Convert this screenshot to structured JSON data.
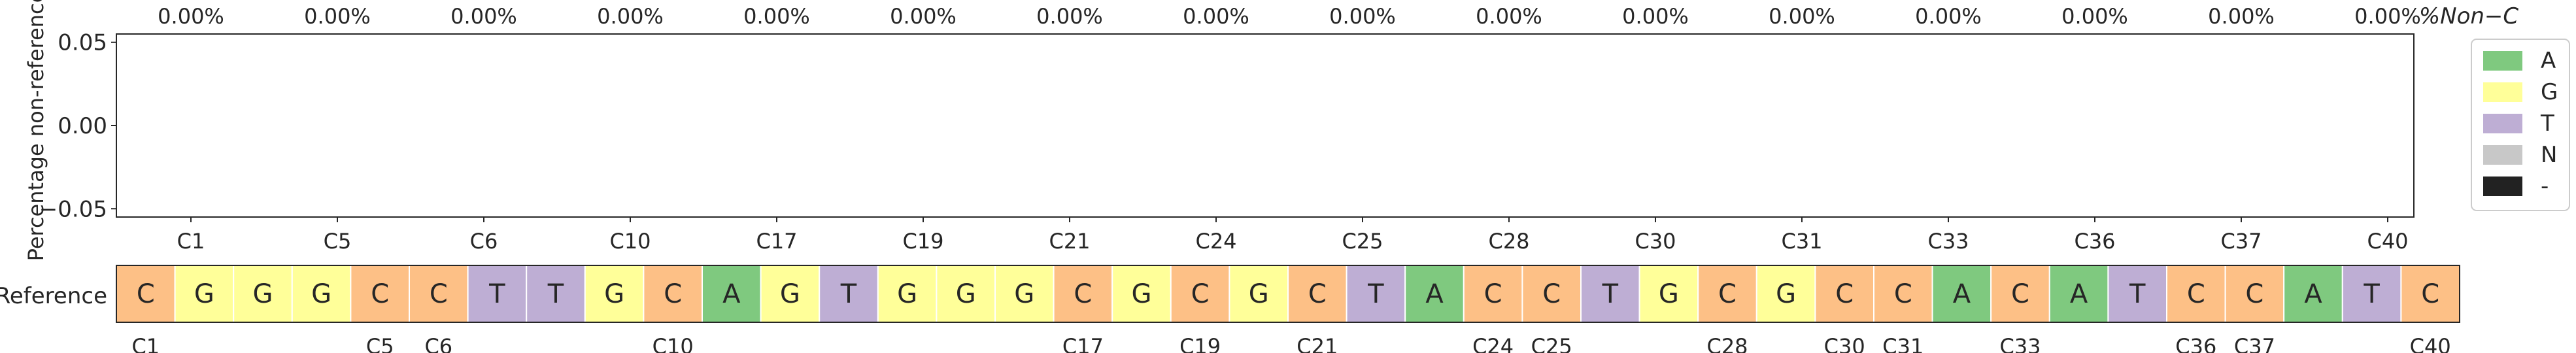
{
  "chart_data": {
    "type": "bar",
    "top_panel": {
      "ylabel": "Percentage non-reference",
      "yticks": [
        -0.05,
        0.0,
        0.05
      ],
      "ytick_labels": [
        "−0.05",
        "0.00",
        "0.05"
      ],
      "ylim": [
        -0.055,
        0.055
      ],
      "categories": [
        "C1",
        "C5",
        "C6",
        "C10",
        "C17",
        "C19",
        "C21",
        "C24",
        "C25",
        "C28",
        "C30",
        "C31",
        "C33",
        "C36",
        "C37",
        "C40"
      ],
      "values": [
        0,
        0,
        0,
        0,
        0,
        0,
        0,
        0,
        0,
        0,
        0,
        0,
        0,
        0,
        0,
        0
      ],
      "value_labels": [
        "0.00%",
        "0.00%",
        "0.00%",
        "0.00%",
        "0.00%",
        "0.00%",
        "0.00%",
        "0.00%",
        "0.00%",
        "0.00%",
        "0.00%",
        "0.00%",
        "0.00%",
        "0.00%",
        "0.00%",
        "0.00%"
      ],
      "annotation": "%Non−C"
    },
    "reference_track": {
      "ylabel": "Reference",
      "sequence": [
        "C",
        "G",
        "G",
        "G",
        "C",
        "C",
        "T",
        "T",
        "G",
        "C",
        "A",
        "G",
        "T",
        "G",
        "G",
        "G",
        "C",
        "G",
        "C",
        "G",
        "C",
        "T",
        "A",
        "C",
        "C",
        "T",
        "G",
        "C",
        "G",
        "C",
        "C",
        "A",
        "C",
        "A",
        "T",
        "C",
        "C",
        "A",
        "T",
        "C"
      ],
      "positions": [
        "C1",
        "C5",
        "C6",
        "C10",
        "C17",
        "C19",
        "C21",
        "C24",
        "C25",
        "C28",
        "C30",
        "C31",
        "C33",
        "C36",
        "C37",
        "C40"
      ],
      "position_indices": [
        0,
        4,
        5,
        9,
        16,
        18,
        20,
        23,
        24,
        27,
        29,
        30,
        32,
        35,
        36,
        39
      ]
    },
    "legend": {
      "placement": "right",
      "items": [
        {
          "label": "A",
          "color": "#7fc97f"
        },
        {
          "label": "G",
          "color": "#ffff99"
        },
        {
          "label": "T",
          "color": "#beaed4"
        },
        {
          "label": "N",
          "color": "#c8c8c8"
        },
        {
          "label": "-",
          "color": "#222222"
        }
      ]
    },
    "base_colors": {
      "A": "#7fc97f",
      "G": "#ffff99",
      "T": "#beaed4",
      "C": "#fdc086",
      "N": "#c8c8c8",
      "-": "#222222"
    },
    "grid": false
  }
}
